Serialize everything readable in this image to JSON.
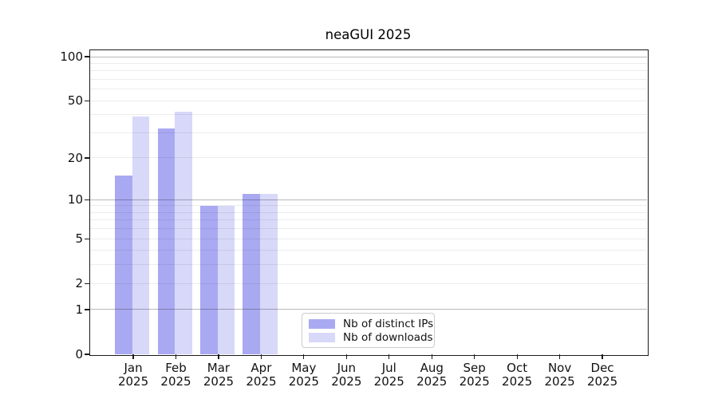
{
  "chart_data": {
    "type": "bar",
    "title": "neaGUI 2025",
    "x": {
      "categories": [
        "Jan",
        "Feb",
        "Mar",
        "Apr",
        "May",
        "Jun",
        "Jul",
        "Aug",
        "Sep",
        "Oct",
        "Nov",
        "Dec"
      ],
      "year": "2025"
    },
    "y": {
      "scale": "log1p",
      "tick_values": [
        100,
        50,
        20,
        10,
        5,
        2,
        1,
        0
      ],
      "grid_major_values": [
        1,
        10,
        100
      ],
      "grid_minor_values": [
        2,
        3,
        4,
        5,
        6,
        7,
        8,
        9,
        20,
        30,
        40,
        50,
        60,
        70,
        80,
        90
      ],
      "ylim": [
        0,
        112
      ],
      "grid": "on"
    },
    "series": [
      {
        "name": "Nb of distinct IPs",
        "color": "#a9a9f2",
        "values": [
          15,
          32,
          9,
          11,
          0,
          0,
          0,
          0,
          0,
          0,
          0,
          0
        ]
      },
      {
        "name": "Nb of downloads",
        "color": "#d8d8f9",
        "values": [
          39,
          42,
          9,
          11,
          0,
          0,
          0,
          0,
          0,
          0,
          0,
          0
        ]
      }
    ],
    "legend": {
      "position": "bottom-center",
      "items": [
        "Nb of distinct IPs",
        "Nb of downloads"
      ]
    }
  },
  "colors": {
    "background": "#ffffff",
    "axis": "#1a1a1a",
    "grid_major": "#b8b8b8",
    "grid_minor": "#e9e9e9",
    "bar_distinct_ips": "#a9a9f2",
    "bar_downloads": "#d8d8f9",
    "text": "#111111"
  }
}
